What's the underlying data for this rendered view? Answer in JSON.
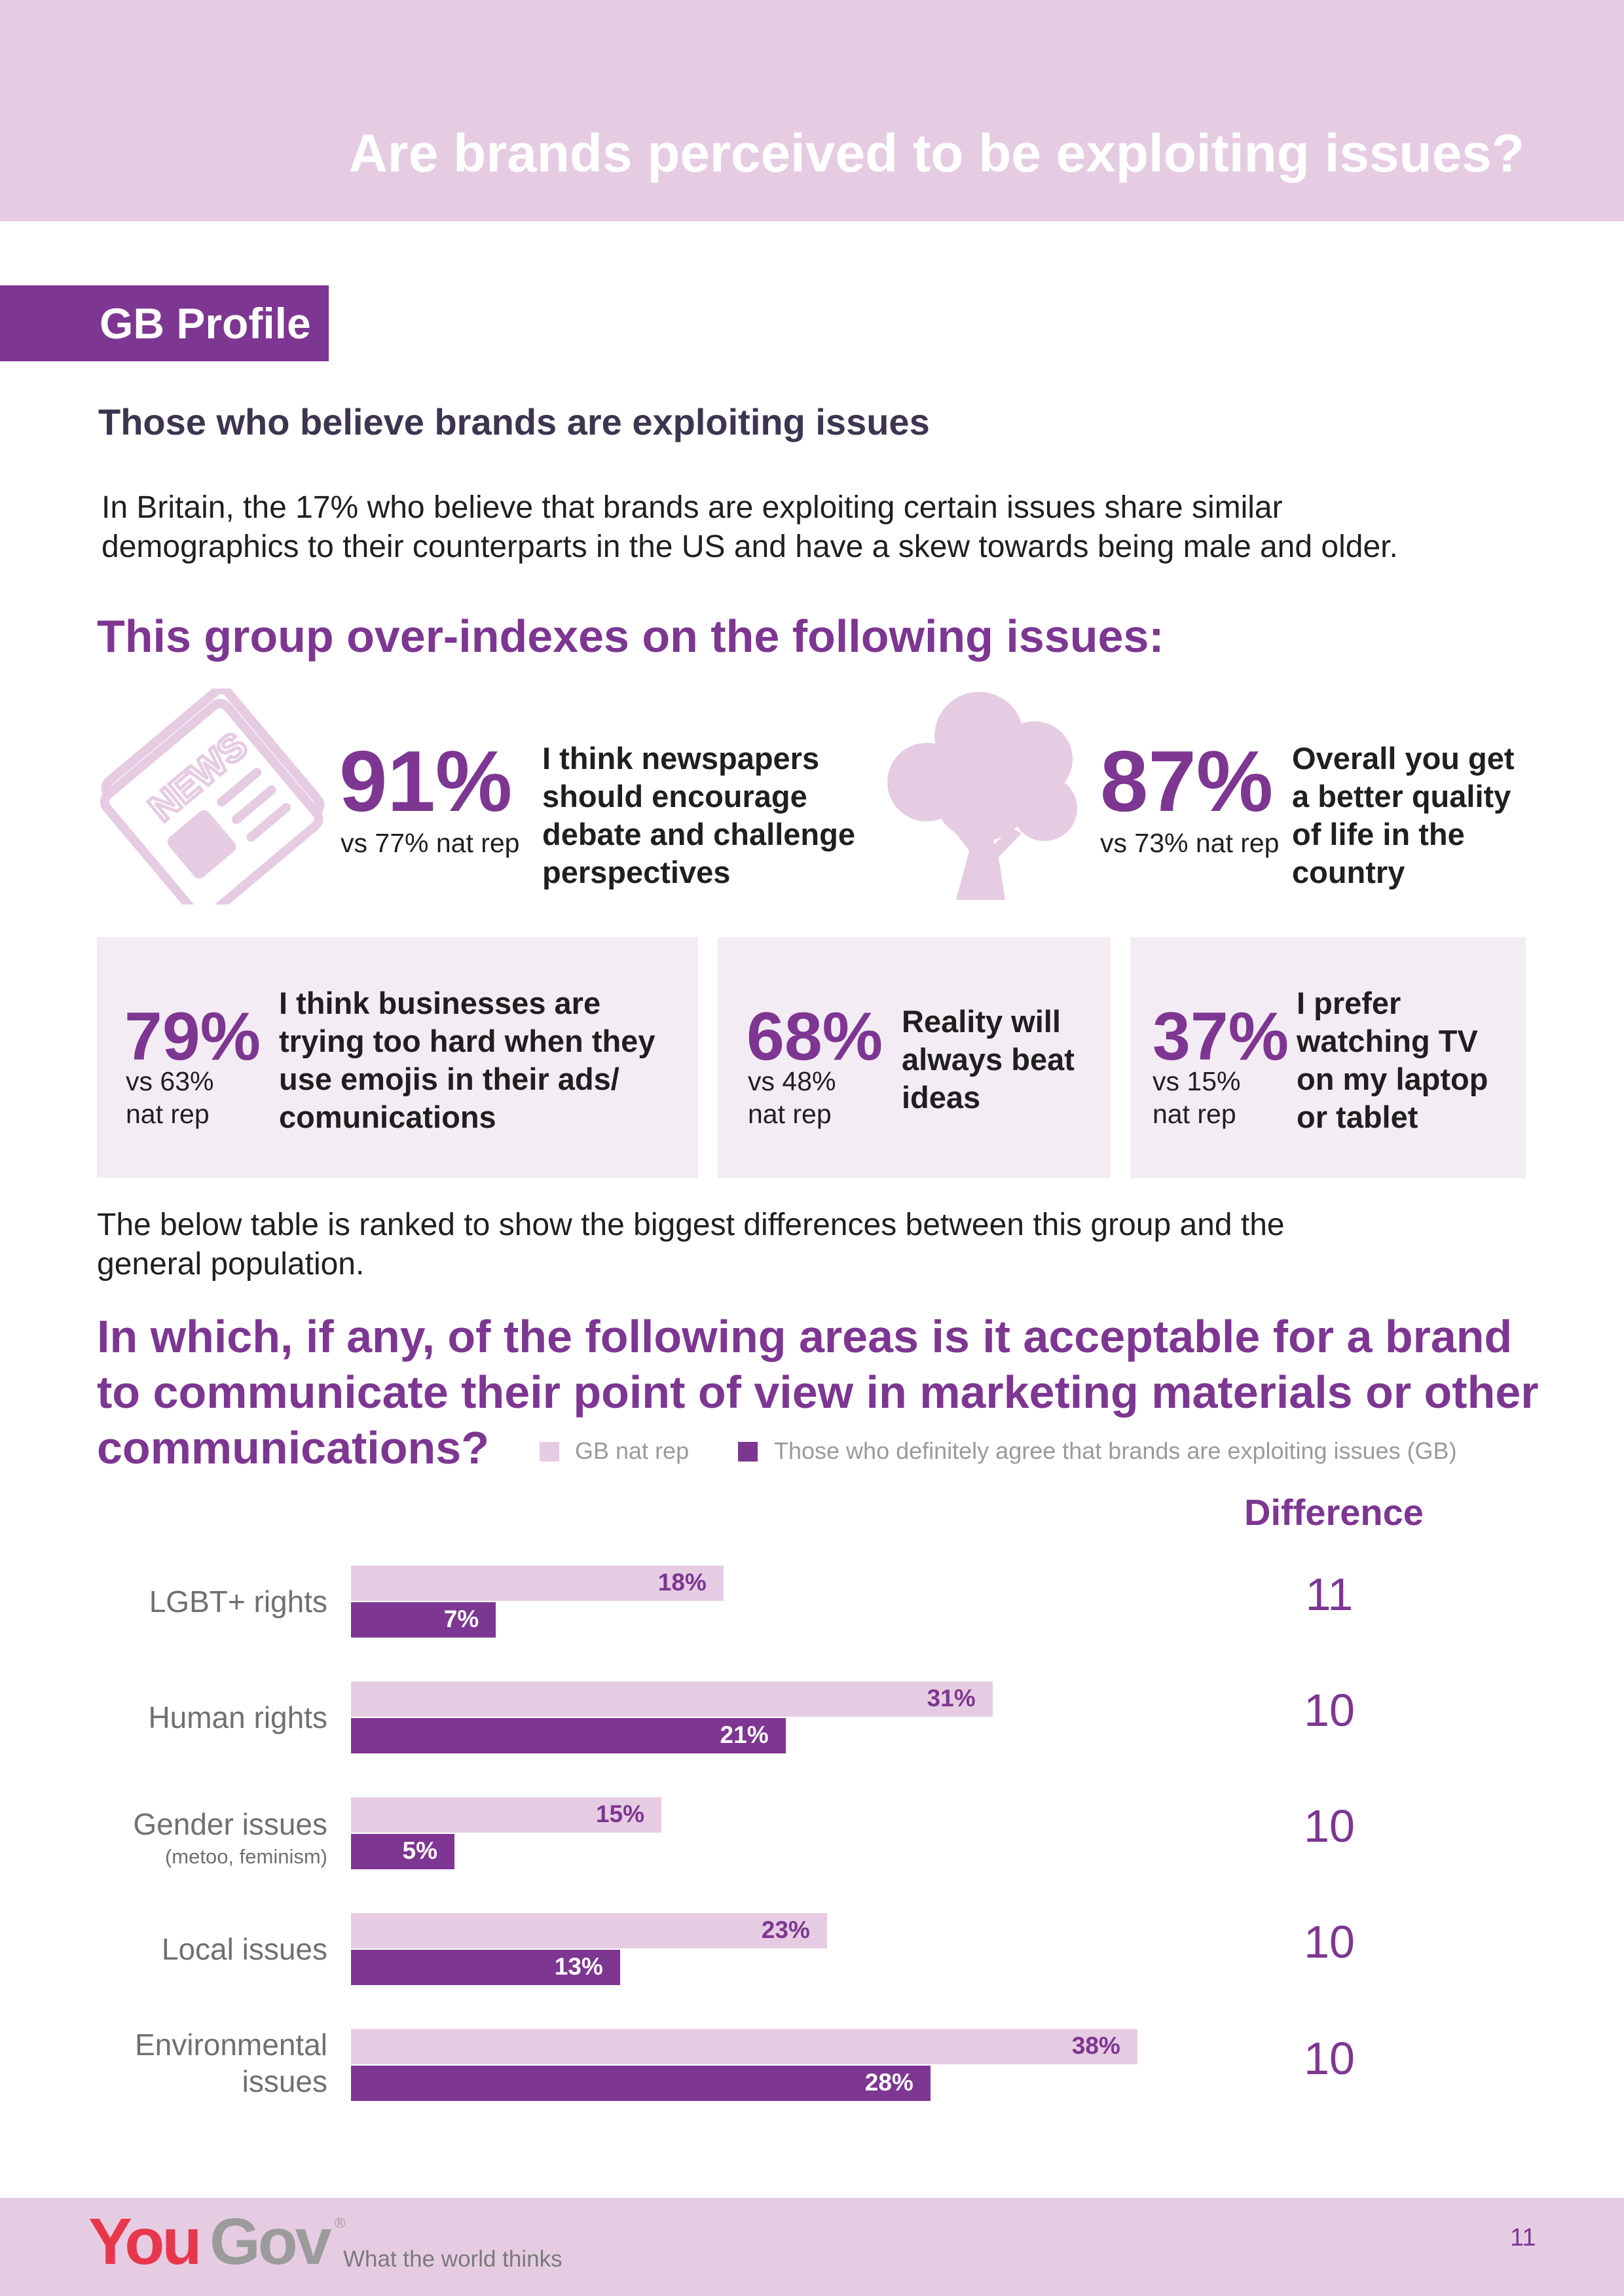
{
  "header": {
    "title": "Are brands perceived to be exploiting issues?"
  },
  "section_label": "GB Profile",
  "subheading": "Those who believe brands are exploiting issues",
  "intro": [
    "In Britain, the 17% who believe that brands are exploiting certain issues share similar",
    "demographics to their counterparts in the US and have a skew towards being male and older."
  ],
  "overindex_heading": "This group over-indexes on the following issues:",
  "stats_top": [
    {
      "value": "91%",
      "vs": "vs 77% nat rep",
      "statement": [
        "I think newspapers",
        "should encourage",
        "debate and challenge",
        "perspectives"
      ],
      "icon": "newspaper-icon",
      "icon_text": "NEWS"
    },
    {
      "value": "87%",
      "vs": "vs 73% nat rep",
      "statement": [
        "Overall you get",
        "a better quality",
        "of life in the",
        "country"
      ],
      "icon": "tree-icon"
    }
  ],
  "stats_cards": [
    {
      "value": "79%",
      "vs": [
        "vs 63%",
        "nat rep"
      ],
      "statement": [
        "I think businesses are",
        "trying too hard when they",
        "use emojis in their ads/",
        "comunications"
      ]
    },
    {
      "value": "68%",
      "vs": [
        "vs 48%",
        "nat rep"
      ],
      "statement": [
        "Reality will",
        "always beat",
        "ideas"
      ]
    },
    {
      "value": "37%",
      "vs": [
        "vs 15%",
        "nat rep"
      ],
      "statement": [
        "I prefer",
        "watching TV",
        "on my laptop",
        "or tablet"
      ]
    }
  ],
  "ranked_note": [
    "The below table is ranked to show the biggest differences between this group and the",
    "general population."
  ],
  "question": [
    "In which, if any, of the following areas is it acceptable for a brand",
    "to communicate their point of view in marketing materials or other",
    "communications?"
  ],
  "difference_heading": "Difference",
  "chart_data": {
    "type": "bar",
    "orientation": "horizontal",
    "categories": [
      "LGBT+ rights",
      "Human rights",
      "Gender issues",
      "Local issues",
      "Environmental issues"
    ],
    "category_notes": [
      "",
      "",
      "(metoo, feminism)",
      "",
      ""
    ],
    "series": [
      {
        "name": "GB nat rep",
        "values": [
          18,
          31,
          15,
          23,
          38
        ],
        "labels": [
          "18%",
          "31%",
          "15%",
          "23%",
          "38%"
        ],
        "color": "#e6cce3",
        "label_color": "#7d3691"
      },
      {
        "name": "Those who definitely agree that brands are exploiting issues (GB)",
        "values": [
          7,
          21,
          5,
          13,
          28
        ],
        "labels": [
          "7%",
          "21%",
          "5%",
          "13%",
          "28%"
        ],
        "color": "#7d3691",
        "label_color": "#ffffff"
      }
    ],
    "difference": [
      "11",
      "10",
      "10",
      "10",
      "10"
    ],
    "value_unit": "%",
    "legend_position": "top-right",
    "grid": false
  },
  "footer": {
    "logo_you": "You",
    "logo_gov": "Gov",
    "logo_mark": "®",
    "tagline": "What the world thinks",
    "page_number": "11"
  },
  "colors": {
    "purple": "#7d3691",
    "light_purple": "#e6cce3",
    "card_bg": "#f4ecf4",
    "logo_red": "#e8374b",
    "logo_grey": "#9b9b9b"
  }
}
